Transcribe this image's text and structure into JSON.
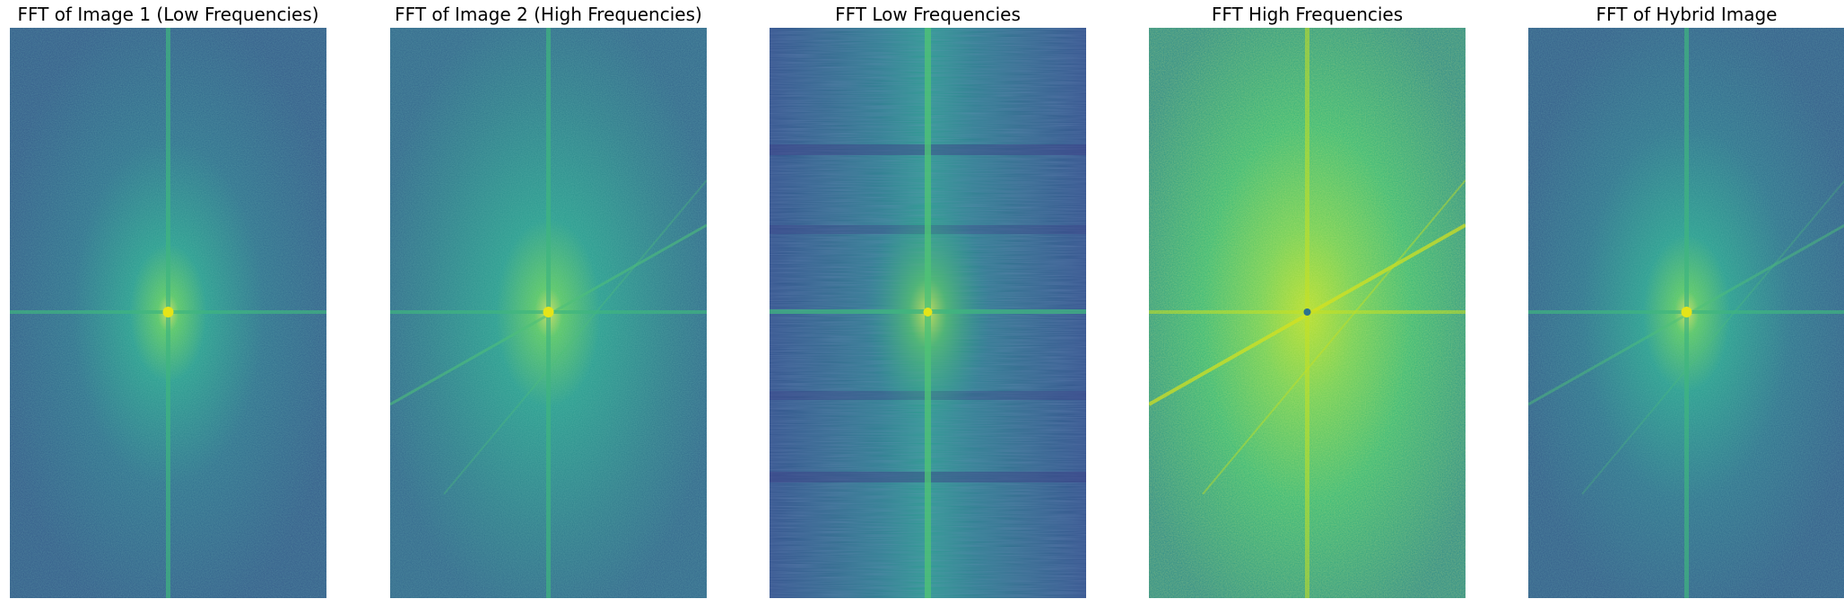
{
  "figure": {
    "panels": [
      {
        "title": "FFT of Image 1 (Low Frequencies)",
        "colormap": "viridis",
        "dominant_color": "#2f6a8c",
        "description_code": "low"
      },
      {
        "title": "FFT of Image 2 (High Frequencies)",
        "colormap": "viridis",
        "dominant_color": "#2f7f8c",
        "description_code": "high"
      },
      {
        "title": "FFT Low Frequencies",
        "colormap": "viridis",
        "dominant_color": "#2c5c8a",
        "description_code": "lowfilt"
      },
      {
        "title": "FFT High Frequencies",
        "colormap": "viridis",
        "dominant_color": "#35a47a",
        "description_code": "highfilt"
      },
      {
        "title": "FFT of Hybrid Image",
        "colormap": "viridis",
        "dominant_color": "#2f6f8c",
        "description_code": "hybrid"
      }
    ]
  }
}
